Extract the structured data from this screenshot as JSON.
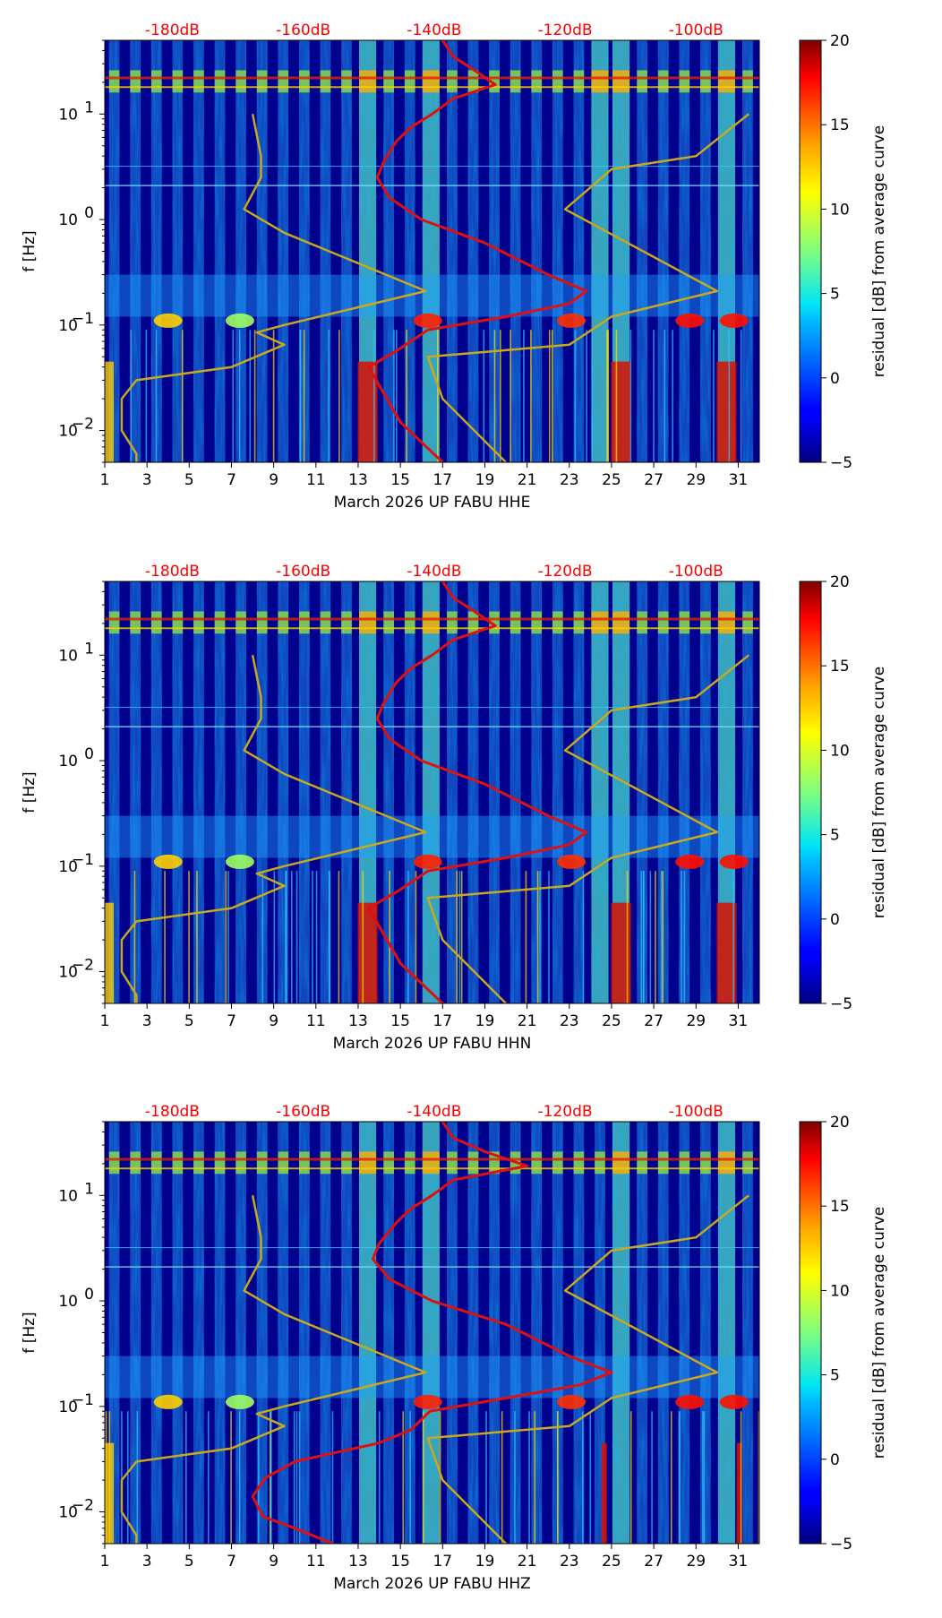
{
  "colors": {
    "upper_curve": "#e01010",
    "lower_curve": "#c8a81e",
    "db_label": "#ff0000"
  },
  "chart_data": [
    {
      "type": "heatmap",
      "title": "",
      "xlabel": "March 2026 UP FABU  HHE",
      "ylabel": "f [Hz]",
      "xlim": [
        1,
        32
      ],
      "ylim": [
        0.005,
        50
      ],
      "yscale": "log",
      "x_ticks": [
        "1",
        "3",
        "5",
        "7",
        "9",
        "11",
        "13",
        "15",
        "17",
        "19",
        "21",
        "23",
        "25",
        "27",
        "29",
        "31"
      ],
      "y_ticks": [
        {
          "base": "10",
          "exp": "-2",
          "value": 0.01
        },
        {
          "base": "10",
          "exp": "-1",
          "value": 0.1
        },
        {
          "base": "10",
          "exp": "0",
          "value": 1
        },
        {
          "base": "10",
          "exp": "1",
          "value": 10
        }
      ],
      "top_ticks": [
        "-180dB",
        "-160dB",
        "-140dB",
        "-120dB",
        "-100dB"
      ],
      "top_tick_days": [
        4.2,
        10.4,
        16.6,
        22.8,
        29.0
      ],
      "colorbar": {
        "label": "residual [dB] from average curve",
        "min": -5,
        "max": 20,
        "ticks": [
          "20",
          "15",
          "10",
          "5",
          "0",
          "−5"
        ],
        "tick_values": [
          20,
          15,
          10,
          5,
          0,
          -5
        ]
      },
      "series": [
        {
          "name": "average curve (red)",
          "points": [
            [
              17.0,
              0.005
            ],
            [
              15.0,
              0.012
            ],
            [
              13.5,
              0.04
            ],
            [
              15.0,
              0.06
            ],
            [
              16.3,
              0.09
            ],
            [
              20.0,
              0.12
            ],
            [
              23.0,
              0.16
            ],
            [
              23.8,
              0.21
            ],
            [
              22.0,
              0.3
            ],
            [
              19.0,
              0.6
            ],
            [
              16.0,
              1.0
            ],
            [
              14.5,
              1.6
            ],
            [
              13.9,
              2.5
            ],
            [
              14.2,
              3.5
            ],
            [
              14.8,
              5.5
            ],
            [
              15.5,
              7.5
            ],
            [
              16.5,
              10.0
            ],
            [
              17.5,
              14.0
            ],
            [
              19.5,
              19.0
            ],
            [
              18.5,
              26.0
            ],
            [
              17.5,
              35.0
            ],
            [
              17.0,
              50.0
            ]
          ]
        },
        {
          "name": "noise model (yellow)",
          "points": [
            [
              20.0,
              0.005
            ],
            [
              17.0,
              0.02
            ],
            [
              16.3,
              0.05
            ],
            [
              23.0,
              0.065
            ],
            [
              25.0,
              0.12
            ],
            [
              30.0,
              0.21
            ],
            [
              22.8,
              1.25
            ],
            [
              25.0,
              3.0
            ],
            [
              29.0,
              4.0
            ],
            [
              31.5,
              10.0
            ],
            null,
            [
              2.5,
              0.005
            ],
            [
              2.5,
              0.006
            ],
            [
              1.8,
              0.01
            ],
            [
              1.8,
              0.02
            ],
            [
              2.5,
              0.03
            ],
            [
              7.0,
              0.04
            ],
            [
              9.5,
              0.065
            ],
            [
              8.2,
              0.085
            ],
            [
              9.5,
              0.1
            ],
            [
              16.2,
              0.21
            ],
            [
              9.5,
              0.75
            ],
            [
              7.6,
              1.25
            ],
            [
              8.4,
              2.5
            ],
            [
              8.4,
              4.0
            ],
            [
              8.0,
              10.0
            ]
          ]
        }
      ]
    },
    {
      "type": "heatmap",
      "title": "",
      "xlabel": "March 2026 UP FABU  HHN",
      "ylabel": "f [Hz]",
      "xlim": [
        1,
        32
      ],
      "ylim": [
        0.005,
        50
      ],
      "yscale": "log",
      "x_ticks": [
        "1",
        "3",
        "5",
        "7",
        "9",
        "11",
        "13",
        "15",
        "17",
        "19",
        "21",
        "23",
        "25",
        "27",
        "29",
        "31"
      ],
      "y_ticks": [
        {
          "base": "10",
          "exp": "-2",
          "value": 0.01
        },
        {
          "base": "10",
          "exp": "-1",
          "value": 0.1
        },
        {
          "base": "10",
          "exp": "0",
          "value": 1
        },
        {
          "base": "10",
          "exp": "1",
          "value": 10
        }
      ],
      "top_ticks": [
        "-180dB",
        "-160dB",
        "-140dB",
        "-120dB",
        "-100dB"
      ],
      "top_tick_days": [
        4.2,
        10.4,
        16.6,
        22.8,
        29.0
      ],
      "colorbar": {
        "label": "residual [dB] from average curve",
        "min": -5,
        "max": 20,
        "ticks": [
          "20",
          "15",
          "10",
          "5",
          "0",
          "−5"
        ],
        "tick_values": [
          20,
          15,
          10,
          5,
          0,
          -5
        ]
      },
      "series": [
        {
          "name": "average curve (red)",
          "points": [
            [
              17.0,
              0.005
            ],
            [
              15.0,
              0.012
            ],
            [
              13.5,
              0.04
            ],
            [
              15.0,
              0.06
            ],
            [
              16.3,
              0.09
            ],
            [
              20.0,
              0.12
            ],
            [
              23.0,
              0.16
            ],
            [
              23.8,
              0.21
            ],
            [
              22.0,
              0.3
            ],
            [
              19.0,
              0.6
            ],
            [
              16.0,
              1.0
            ],
            [
              14.5,
              1.6
            ],
            [
              13.9,
              2.5
            ],
            [
              14.2,
              3.5
            ],
            [
              14.8,
              5.5
            ],
            [
              15.5,
              7.5
            ],
            [
              16.5,
              10.0
            ],
            [
              17.5,
              14.0
            ],
            [
              19.5,
              19.0
            ],
            [
              18.5,
              26.0
            ],
            [
              17.5,
              35.0
            ],
            [
              17.0,
              50.0
            ]
          ]
        },
        {
          "name": "noise model (yellow)",
          "points": [
            [
              20.0,
              0.005
            ],
            [
              17.0,
              0.02
            ],
            [
              16.3,
              0.05
            ],
            [
              23.0,
              0.065
            ],
            [
              25.0,
              0.12
            ],
            [
              30.0,
              0.21
            ],
            [
              22.8,
              1.25
            ],
            [
              25.0,
              3.0
            ],
            [
              29.0,
              4.0
            ],
            [
              31.5,
              10.0
            ],
            null,
            [
              2.5,
              0.005
            ],
            [
              2.5,
              0.006
            ],
            [
              1.8,
              0.01
            ],
            [
              1.8,
              0.02
            ],
            [
              2.5,
              0.03
            ],
            [
              7.0,
              0.04
            ],
            [
              9.5,
              0.065
            ],
            [
              8.2,
              0.085
            ],
            [
              9.5,
              0.1
            ],
            [
              16.2,
              0.21
            ],
            [
              9.5,
              0.75
            ],
            [
              7.6,
              1.25
            ],
            [
              8.4,
              2.5
            ],
            [
              8.4,
              4.0
            ],
            [
              8.0,
              10.0
            ]
          ]
        }
      ]
    },
    {
      "type": "heatmap",
      "title": "",
      "xlabel": "March 2026 UP FABU  HHZ",
      "ylabel": "f [Hz]",
      "xlim": [
        1,
        32
      ],
      "ylim": [
        0.005,
        50
      ],
      "yscale": "log",
      "x_ticks": [
        "1",
        "3",
        "5",
        "7",
        "9",
        "11",
        "13",
        "15",
        "17",
        "19",
        "21",
        "23",
        "25",
        "27",
        "29",
        "31"
      ],
      "y_ticks": [
        {
          "base": "10",
          "exp": "-2",
          "value": 0.01
        },
        {
          "base": "10",
          "exp": "-1",
          "value": 0.1
        },
        {
          "base": "10",
          "exp": "0",
          "value": 1
        },
        {
          "base": "10",
          "exp": "1",
          "value": 10
        }
      ],
      "top_ticks": [
        "-180dB",
        "-160dB",
        "-140dB",
        "-120dB",
        "-100dB"
      ],
      "top_tick_days": [
        4.2,
        10.4,
        16.6,
        22.8,
        29.0
      ],
      "colorbar": {
        "label": "residual [dB] from average curve",
        "min": -5,
        "max": 20,
        "ticks": [
          "20",
          "15",
          "10",
          "5",
          "0",
          "−5"
        ],
        "tick_values": [
          20,
          15,
          10,
          5,
          0,
          -5
        ]
      },
      "series": [
        {
          "name": "average curve (red)",
          "points": [
            [
              11.8,
              0.005
            ],
            [
              10.0,
              0.007
            ],
            [
              8.5,
              0.009
            ],
            [
              8.0,
              0.014
            ],
            [
              8.6,
              0.021
            ],
            [
              10.0,
              0.03
            ],
            [
              14.0,
              0.045
            ],
            [
              15.5,
              0.06
            ],
            [
              16.4,
              0.09
            ],
            [
              20.0,
              0.12
            ],
            [
              23.5,
              0.16
            ],
            [
              25.0,
              0.21
            ],
            [
              23.0,
              0.3
            ],
            [
              20.0,
              0.6
            ],
            [
              16.5,
              1.0
            ],
            [
              14.5,
              1.6
            ],
            [
              13.7,
              2.5
            ],
            [
              14.0,
              3.5
            ],
            [
              14.8,
              5.5
            ],
            [
              15.5,
              7.5
            ],
            [
              16.5,
              10.0
            ],
            [
              17.5,
              14.0
            ],
            [
              21.0,
              19.0
            ],
            [
              19.0,
              26.0
            ],
            [
              17.5,
              35.0
            ],
            [
              17.0,
              50.0
            ]
          ]
        },
        {
          "name": "noise model (yellow)",
          "points": [
            [
              20.0,
              0.005
            ],
            [
              17.0,
              0.02
            ],
            [
              16.3,
              0.05
            ],
            [
              23.0,
              0.065
            ],
            [
              25.0,
              0.12
            ],
            [
              30.0,
              0.21
            ],
            [
              22.8,
              1.25
            ],
            [
              25.0,
              3.0
            ],
            [
              29.0,
              4.0
            ],
            [
              31.5,
              10.0
            ],
            null,
            [
              2.5,
              0.005
            ],
            [
              2.5,
              0.006
            ],
            [
              1.8,
              0.01
            ],
            [
              1.8,
              0.02
            ],
            [
              2.5,
              0.03
            ],
            [
              7.0,
              0.04
            ],
            [
              9.5,
              0.065
            ],
            [
              8.2,
              0.085
            ],
            [
              9.5,
              0.1
            ],
            [
              16.2,
              0.21
            ],
            [
              9.5,
              0.75
            ],
            [
              7.6,
              1.25
            ],
            [
              8.4,
              2.5
            ],
            [
              8.4,
              4.0
            ],
            [
              8.0,
              10.0
            ]
          ]
        }
      ]
    }
  ]
}
